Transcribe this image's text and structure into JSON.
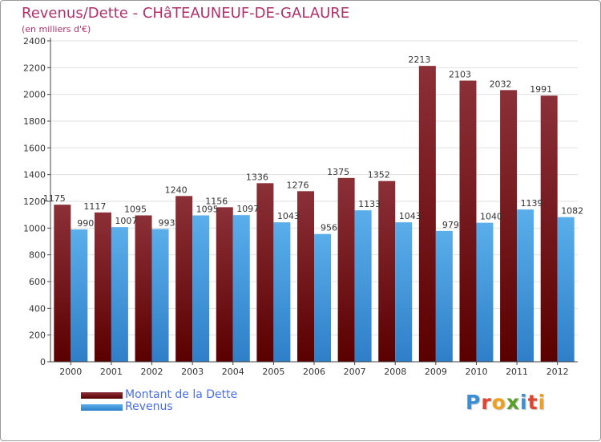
{
  "header": {
    "title": "Revenus/Dette - CHâTEAUNEUF-DE-GALAURE",
    "subtitle": "(en milliers d'€)"
  },
  "legend": {
    "items": [
      {
        "label": "Montant de la Dette"
      },
      {
        "label": "Revenus"
      }
    ]
  },
  "brand": {
    "letters": [
      {
        "ch": "P",
        "color": "#3a8fd6"
      },
      {
        "ch": "r",
        "color": "#e0452f"
      },
      {
        "ch": "o",
        "color": "#f0a020"
      },
      {
        "ch": "x",
        "color": "#5aa02c"
      },
      {
        "ch": "i",
        "color": "#3a8fd6"
      },
      {
        "ch": "t",
        "color": "#e0452f"
      },
      {
        "ch": "i",
        "color": "#f0a020"
      }
    ]
  },
  "colors": {
    "dette_top": "#8c3038",
    "dette_bottom": "#5a0000",
    "revenus_top": "#5aaeea",
    "revenus_bottom": "#2e7fc8",
    "grid": "#e0e0e0",
    "axis": "#444444",
    "title": "#b0306a",
    "legend_text": "#4a6ee8"
  },
  "chart_data": {
    "type": "bar",
    "title": "Revenus/Dette - CHâTEAUNEUF-DE-GALAURE",
    "ylabel": "(en milliers d'€)",
    "categories": [
      "2000",
      "2001",
      "2002",
      "2003",
      "2004",
      "2005",
      "2006",
      "2007",
      "2008",
      "2009",
      "2010",
      "2011",
      "2012"
    ],
    "series": [
      {
        "name": "Montant de la Dette",
        "values": [
          1175,
          1117,
          1095,
          1240,
          1156,
          1336,
          1276,
          1375,
          1352,
          2213,
          2103,
          2032,
          1991
        ]
      },
      {
        "name": "Revenus",
        "values": [
          990,
          1007,
          993,
          1095,
          1097,
          1043,
          956,
          1133,
          1043,
          979,
          1040,
          1139,
          1082
        ]
      }
    ],
    "ylim": [
      0,
      2400
    ],
    "yticks": [
      0,
      200,
      400,
      600,
      800,
      1000,
      1200,
      1400,
      1600,
      1800,
      2000,
      2200,
      2400
    ],
    "grid": true,
    "legend_position": "bottom-left"
  }
}
